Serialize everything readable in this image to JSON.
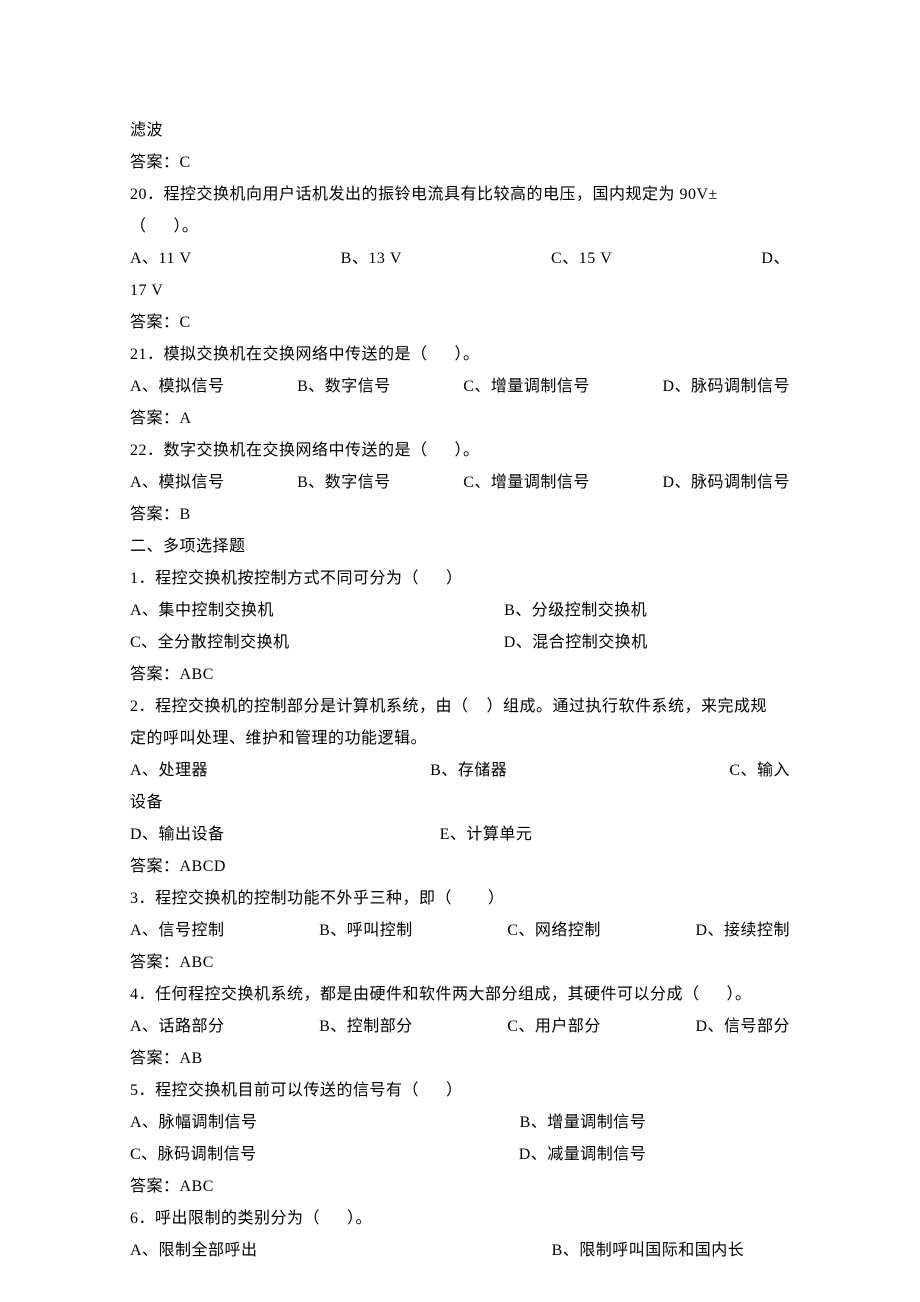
{
  "text_color": "#000000",
  "background_color": "#ffffff",
  "font_family": "SimSun",
  "font_size_pt": 12,
  "lines": {
    "l1": "滤波",
    "l2": "答案：C",
    "l3": "20．程控交换机向用户话机发出的振铃电流具有比较高的电压，国内规定为 90V±",
    "l4": "（      ）。",
    "q20_a": "A、11 V",
    "q20_b": "B、13 V",
    "q20_c": "C、15 V",
    "q20_d": "D、",
    "l6": "17 V",
    "l7": "答案：C",
    "l8": "21．模拟交换机在交换网络中传送的是（      ）。",
    "q21_a": "A、模拟信号",
    "q21_b": "B、数字信号",
    "q21_c": "C、增量调制信号",
    "q21_d": "D、脉码调制信号",
    "l10": "答案：A",
    "l11": "22．数字交换机在交换网络中传送的是（      ）。",
    "q22_a": "A、模拟信号",
    "q22_b": "B、数字信号",
    "q22_c": "C、增量调制信号",
    "q22_d": "D、脉码调制信号",
    "l13": "答案：B",
    "l14": "二、多项选择题",
    "l15": "1．程控交换机按控制方式不同可分为（      ）",
    "m1_a": "A、集中控制交换机",
    "m1_b": "B、分级控制交换机",
    "m1_c": "C、全分散控制交换机",
    "m1_d": "D、混合控制交换机",
    "l18": "答案：ABC",
    "l19": "2．程控交换机的控制部分是计算机系统，由（    ）组成。通过执行软件系统，来完成规",
    "l20": "定的呼叫处理、维护和管理的功能逻辑。",
    "m2_a": "A、处理器",
    "m2_b": "B、存储器",
    "m2_c": "C、输入",
    "l22": "设备",
    "m2_d": "D、输出设备",
    "m2_e": "E、计算单元",
    "l24": "答案：ABCD",
    "l25": "3．程控交换机的控制功能不外乎三种，即（        ）",
    "m3_a": "A、信号控制",
    "m3_b": "B、呼叫控制",
    "m3_c": "C、网络控制",
    "m3_d": "D、接续控制",
    "l27": "答案：ABC",
    "l28": "4．任何程控交换机系统，都是由硬件和软件两大部分组成，其硬件可以分成（      ）。",
    "m4_a": "A、话路部分",
    "m4_b": "B、控制部分",
    "m4_c": "C、用户部分",
    "m4_d": "D、信号部分",
    "l30": "答案：AB",
    "l31": "5．程控交换机目前可以传送的信号有（      ）",
    "m5_a": "A、脉幅调制信号",
    "m5_b": "B、增量调制信号",
    "m5_c": "C、脉码调制信号",
    "m5_d": "D、减量调制信号",
    "l34": "答案：ABC",
    "l35": "6．呼出限制的类别分为（      ）。",
    "m6_a": "A、限制全部呼出",
    "m6_b": "B、限制呼叫国际和国内长"
  }
}
